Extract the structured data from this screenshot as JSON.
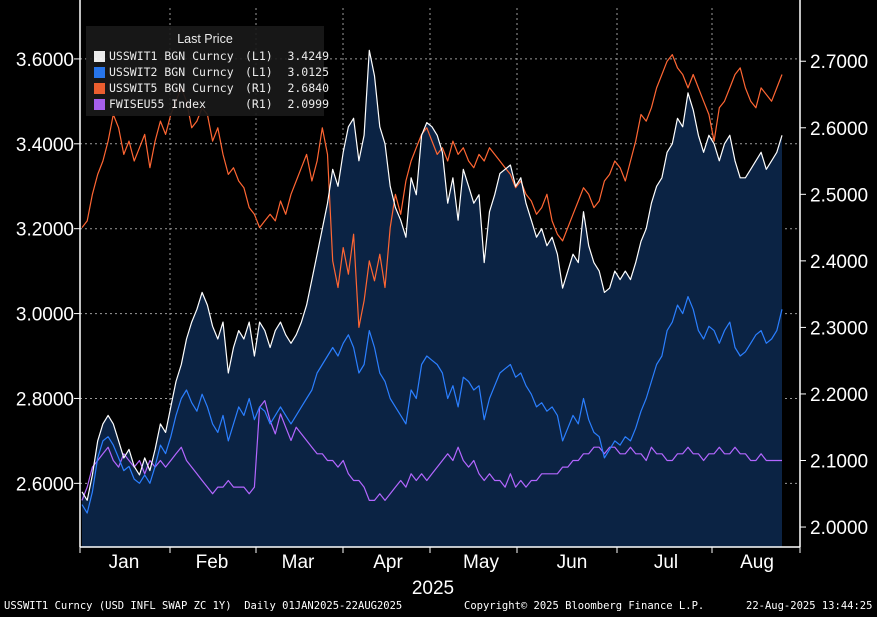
{
  "chart_data": {
    "type": "line",
    "legend_title": "Last Price",
    "year_label": "2025",
    "months": [
      "Jan",
      "Feb",
      "Mar",
      "Apr",
      "May",
      "Jun",
      "Jul",
      "Aug"
    ],
    "left_axis": {
      "ticks": [
        "3.6000",
        "3.4000",
        "3.2000",
        "3.0000",
        "2.8000",
        "2.6000"
      ],
      "range": [
        2.45,
        3.72
      ]
    },
    "right_axis": {
      "ticks": [
        "2.7000",
        "2.6000",
        "2.5000",
        "2.4000",
        "2.3000",
        "2.2000",
        "2.1000",
        "2.0000"
      ],
      "range": [
        1.97,
        2.78
      ]
    },
    "series": [
      {
        "name": "USSWIT1 BGN Curncy",
        "axis": "(L1)",
        "last": "3.4249",
        "color": "#ffffff",
        "fill": true,
        "values": [
          2.58,
          2.56,
          2.62,
          2.7,
          2.74,
          2.76,
          2.74,
          2.7,
          2.66,
          2.68,
          2.64,
          2.62,
          2.66,
          2.63,
          2.68,
          2.74,
          2.72,
          2.78,
          2.84,
          2.88,
          2.94,
          2.98,
          3.01,
          3.05,
          3.02,
          2.97,
          2.94,
          2.98,
          2.86,
          2.92,
          2.96,
          2.94,
          2.98,
          2.9,
          2.98,
          2.96,
          2.92,
          2.96,
          2.98,
          2.95,
          2.93,
          2.95,
          2.98,
          3.02,
          3.08,
          3.14,
          3.2,
          3.26,
          3.34,
          3.3,
          3.38,
          3.44,
          3.46,
          3.36,
          3.42,
          3.62,
          3.56,
          3.44,
          3.4,
          3.3,
          3.25,
          3.22,
          3.18,
          3.32,
          3.28,
          3.42,
          3.45,
          3.44,
          3.42,
          3.38,
          3.26,
          3.32,
          3.22,
          3.34,
          3.3,
          3.26,
          3.28,
          3.12,
          3.24,
          3.28,
          3.33,
          3.34,
          3.35,
          3.3,
          3.32,
          3.26,
          3.22,
          3.18,
          3.2,
          3.16,
          3.18,
          3.14,
          3.06,
          3.1,
          3.14,
          3.12,
          3.24,
          3.16,
          3.12,
          3.1,
          3.05,
          3.06,
          3.1,
          3.08,
          3.1,
          3.08,
          3.12,
          3.17,
          3.2,
          3.26,
          3.3,
          3.32,
          3.38,
          3.4,
          3.46,
          3.44,
          3.52,
          3.48,
          3.42,
          3.38,
          3.42,
          3.4,
          3.36,
          3.4,
          3.42,
          3.36,
          3.32,
          3.32,
          3.34,
          3.36,
          3.38,
          3.34,
          3.36,
          3.38,
          3.42
        ]
      },
      {
        "name": "USSWIT2 BGN Curncy",
        "axis": "(L1)",
        "last": "3.0125",
        "color": "#2b7fff",
        "fill": false,
        "values": [
          2.55,
          2.53,
          2.58,
          2.66,
          2.7,
          2.71,
          2.69,
          2.66,
          2.63,
          2.64,
          2.61,
          2.6,
          2.62,
          2.6,
          2.64,
          2.69,
          2.67,
          2.71,
          2.76,
          2.8,
          2.82,
          2.79,
          2.77,
          2.81,
          2.78,
          2.74,
          2.72,
          2.76,
          2.7,
          2.74,
          2.78,
          2.76,
          2.8,
          2.75,
          2.78,
          2.77,
          2.74,
          2.76,
          2.78,
          2.76,
          2.74,
          2.76,
          2.78,
          2.8,
          2.82,
          2.86,
          2.88,
          2.9,
          2.92,
          2.9,
          2.93,
          2.95,
          2.92,
          2.86,
          2.88,
          2.96,
          2.92,
          2.86,
          2.84,
          2.8,
          2.78,
          2.76,
          2.74,
          2.82,
          2.8,
          2.88,
          2.9,
          2.89,
          2.88,
          2.86,
          2.8,
          2.83,
          2.78,
          2.85,
          2.84,
          2.82,
          2.83,
          2.75,
          2.8,
          2.83,
          2.86,
          2.87,
          2.88,
          2.85,
          2.86,
          2.83,
          2.81,
          2.78,
          2.79,
          2.77,
          2.78,
          2.76,
          2.7,
          2.73,
          2.76,
          2.74,
          2.8,
          2.75,
          2.72,
          2.71,
          2.66,
          2.68,
          2.7,
          2.69,
          2.71,
          2.7,
          2.73,
          2.77,
          2.8,
          2.84,
          2.88,
          2.9,
          2.96,
          2.98,
          3.02,
          3.0,
          3.04,
          3.01,
          2.96,
          2.94,
          2.97,
          2.96,
          2.93,
          2.96,
          2.98,
          2.92,
          2.9,
          2.91,
          2.93,
          2.95,
          2.96,
          2.93,
          2.94,
          2.96,
          3.01
        ]
      },
      {
        "name": "USSWIT5 BGN Curncy",
        "axis": "(R1)",
        "last": "2.6840",
        "color": "#ff6633",
        "fill": false,
        "values": [
          2.45,
          2.46,
          2.5,
          2.53,
          2.55,
          2.58,
          2.62,
          2.6,
          2.56,
          2.58,
          2.55,
          2.57,
          2.59,
          2.54,
          2.58,
          2.61,
          2.59,
          2.62,
          2.64,
          2.66,
          2.64,
          2.6,
          2.61,
          2.63,
          2.62,
          2.58,
          2.6,
          2.56,
          2.53,
          2.54,
          2.52,
          2.51,
          2.48,
          2.47,
          2.45,
          2.46,
          2.47,
          2.46,
          2.49,
          2.47,
          2.5,
          2.52,
          2.54,
          2.56,
          2.52,
          2.55,
          2.6,
          2.56,
          2.4,
          2.36,
          2.42,
          2.38,
          2.44,
          2.3,
          2.34,
          2.4,
          2.37,
          2.41,
          2.36,
          2.45,
          2.5,
          2.47,
          2.52,
          2.55,
          2.57,
          2.59,
          2.6,
          2.58,
          2.56,
          2.57,
          2.55,
          2.58,
          2.56,
          2.57,
          2.55,
          2.54,
          2.56,
          2.55,
          2.57,
          2.56,
          2.55,
          2.54,
          2.53,
          2.51,
          2.52,
          2.5,
          2.49,
          2.47,
          2.48,
          2.5,
          2.46,
          2.44,
          2.43,
          2.45,
          2.47,
          2.49,
          2.51,
          2.5,
          2.48,
          2.49,
          2.52,
          2.53,
          2.55,
          2.54,
          2.52,
          2.55,
          2.58,
          2.62,
          2.61,
          2.63,
          2.66,
          2.68,
          2.7,
          2.71,
          2.69,
          2.68,
          2.66,
          2.68,
          2.66,
          2.64,
          2.62,
          2.58,
          2.63,
          2.64,
          2.66,
          2.68,
          2.69,
          2.66,
          2.64,
          2.63,
          2.66,
          2.65,
          2.64,
          2.66,
          2.68
        ]
      },
      {
        "name": "FWISEU55 Index",
        "axis": "(R1)",
        "last": "2.0999",
        "color": "#b366ff",
        "fill": false,
        "values": [
          2.04,
          2.06,
          2.09,
          2.1,
          2.11,
          2.12,
          2.1,
          2.09,
          2.11,
          2.1,
          2.09,
          2.1,
          2.08,
          2.1,
          2.09,
          2.1,
          2.09,
          2.1,
          2.11,
          2.12,
          2.1,
          2.09,
          2.08,
          2.07,
          2.06,
          2.05,
          2.06,
          2.06,
          2.07,
          2.06,
          2.06,
          2.06,
          2.05,
          2.06,
          2.18,
          2.19,
          2.16,
          2.14,
          2.17,
          2.15,
          2.13,
          2.15,
          2.14,
          2.13,
          2.12,
          2.11,
          2.11,
          2.1,
          2.1,
          2.09,
          2.1,
          2.08,
          2.07,
          2.07,
          2.06,
          2.04,
          2.04,
          2.05,
          2.04,
          2.05,
          2.06,
          2.07,
          2.06,
          2.08,
          2.07,
          2.08,
          2.07,
          2.08,
          2.09,
          2.1,
          2.11,
          2.1,
          2.12,
          2.1,
          2.09,
          2.1,
          2.08,
          2.07,
          2.08,
          2.07,
          2.07,
          2.06,
          2.08,
          2.06,
          2.07,
          2.06,
          2.07,
          2.07,
          2.08,
          2.08,
          2.08,
          2.08,
          2.09,
          2.09,
          2.1,
          2.1,
          2.11,
          2.11,
          2.12,
          2.12,
          2.11,
          2.12,
          2.12,
          2.11,
          2.11,
          2.12,
          2.11,
          2.11,
          2.1,
          2.12,
          2.11,
          2.11,
          2.1,
          2.1,
          2.11,
          2.11,
          2.12,
          2.11,
          2.11,
          2.1,
          2.11,
          2.11,
          2.12,
          2.11,
          2.11,
          2.12,
          2.11,
          2.11,
          2.1,
          2.1,
          2.11,
          2.1,
          2.1,
          2.1,
          2.1
        ]
      }
    ]
  },
  "footer": {
    "left": "USSWIT1 Curncy (USD INFL SWAP ZC 1Y)  Daily 01JAN2025-22AUG2025",
    "center": "Copyright© 2025 Bloomberg Finance L.P.",
    "right": "22-Aug-2025 13:44:25"
  },
  "colors": {
    "background": "#000000",
    "plot_bg": "#000000",
    "fill": "#0b2344",
    "grid": "#9a9a9a",
    "axis": "#ffffff"
  }
}
